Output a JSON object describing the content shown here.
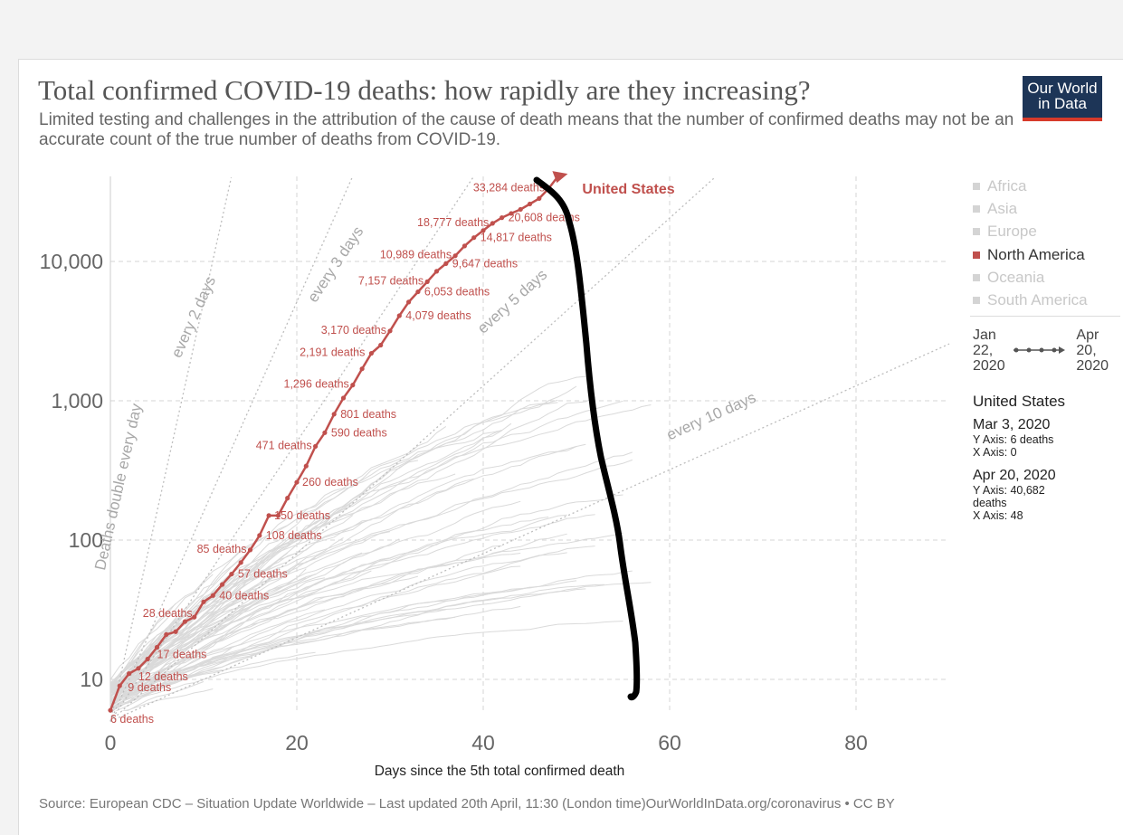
{
  "header": {
    "title": "Total confirmed COVID-19 deaths: how rapidly are they increasing?",
    "subtitle": "Limited testing and challenges in the attribution of the cause of death means that the number of confirmed deaths may not be an accurate count of the true number of deaths from COVID-19.",
    "logo_line1": "Our World",
    "logo_line2": "in Data"
  },
  "legend": {
    "items": [
      {
        "label": "Africa",
        "active": false
      },
      {
        "label": "Asia",
        "active": false
      },
      {
        "label": "Europe",
        "active": false
      },
      {
        "label": "North America",
        "active": true
      },
      {
        "label": "Oceania",
        "active": false
      },
      {
        "label": "South America",
        "active": false
      }
    ]
  },
  "timeline": {
    "start": "Jan\n22,\n2020",
    "end": "Apr\n20,\n2020"
  },
  "info": {
    "country": "United States",
    "p1_date": "Mar 3, 2020",
    "p1_y": "Y Axis: 6 deaths",
    "p1_x": "X Axis: 0",
    "p2_date": "Apr 20, 2020",
    "p2_y": "Y Axis: 40,682\ndeaths",
    "p2_x": "X Axis: 48"
  },
  "footer": {
    "source": "Source: European CDC – Situation Update Worldwide – Last updated 20th April, 11:30 (London time)OurWorldInData.org/coronavirus • CC BY"
  },
  "colors": {
    "highlight": "#c0504d",
    "background_lines": "#dddddd",
    "guide_lines": "#bbbbbb",
    "annotation_ink": "#000000"
  },
  "chart_data": {
    "type": "line",
    "scale_y": "log",
    "xlabel": "Days since the 5th total confirmed death",
    "ylabel": "",
    "xlim": [
      0,
      90
    ],
    "ylim": [
      5,
      40000
    ],
    "x_ticks": [
      0,
      20,
      40,
      60,
      80
    ],
    "y_ticks": [
      {
        "value": 10,
        "label": "10"
      },
      {
        "value": 100,
        "label": "100"
      },
      {
        "value": 1000,
        "label": "1,000"
      },
      {
        "value": 10000,
        "label": "10,000"
      }
    ],
    "series_label": "United States",
    "series": [
      {
        "name": "United States",
        "x": [
          0,
          1,
          2,
          3,
          4,
          5,
          6,
          7,
          8,
          9,
          10,
          11,
          12,
          13,
          14,
          15,
          16,
          17,
          18,
          19,
          20,
          21,
          22,
          23,
          24,
          25,
          26,
          27,
          28,
          29,
          30,
          31,
          32,
          33,
          34,
          35,
          36,
          37,
          38,
          39,
          40,
          41,
          42,
          43,
          44,
          45,
          46,
          47,
          48
        ],
        "y": [
          6,
          9,
          11,
          12,
          14,
          17,
          21,
          22,
          26,
          28,
          36,
          40,
          48,
          57,
          69,
          85,
          108,
          150,
          150,
          200,
          260,
          340,
          471,
          590,
          801,
          1046,
          1296,
          1695,
          2191,
          2509,
          3170,
          4079,
          5113,
          6053,
          7157,
          8501,
          9647,
          10989,
          12911,
          14817,
          16673,
          18777,
          20608,
          22108,
          23640,
          25856,
          28326,
          33284,
          40682
        ]
      }
    ],
    "labeled_points": [
      {
        "label": "6 deaths",
        "x": 0,
        "y": 6
      },
      {
        "label": "9 deaths",
        "x": 1,
        "y": 9
      },
      {
        "label": "12 deaths",
        "x": 3,
        "y": 12
      },
      {
        "label": "17 deaths",
        "x": 5,
        "y": 17
      },
      {
        "label": "28 deaths",
        "x": 9,
        "y": 28
      },
      {
        "label": "40 deaths",
        "x": 11,
        "y": 40
      },
      {
        "label": "57 deaths",
        "x": 13,
        "y": 57
      },
      {
        "label": "85 deaths",
        "x": 15,
        "y": 85
      },
      {
        "label": "108 deaths",
        "x": 16,
        "y": 108
      },
      {
        "label": "150 deaths",
        "x": 17,
        "y": 150
      },
      {
        "label": "260 deaths",
        "x": 20,
        "y": 260
      },
      {
        "label": "471 deaths",
        "x": 22,
        "y": 471
      },
      {
        "label": "590 deaths",
        "x": 23,
        "y": 590
      },
      {
        "label": "801 deaths",
        "x": 24,
        "y": 801
      },
      {
        "label": "1,296 deaths",
        "x": 26,
        "y": 1296
      },
      {
        "label": "2,191 deaths",
        "x": 28,
        "y": 2191
      },
      {
        "label": "3,170 deaths",
        "x": 30,
        "y": 3170
      },
      {
        "label": "4,079 deaths",
        "x": 31,
        "y": 4079
      },
      {
        "label": "6,053 deaths",
        "x": 33,
        "y": 6053
      },
      {
        "label": "7,157 deaths",
        "x": 34,
        "y": 7157
      },
      {
        "label": "9,647 deaths",
        "x": 36,
        "y": 9647
      },
      {
        "label": "10,989 deaths",
        "x": 37,
        "y": 10989
      },
      {
        "label": "14,817 deaths",
        "x": 39,
        "y": 14817
      },
      {
        "label": "18,777 deaths",
        "x": 41,
        "y": 18777
      },
      {
        "label": "20,608 deaths",
        "x": 42,
        "y": 20608
      },
      {
        "label": "33,284 deaths",
        "x": 47,
        "y": 33284
      }
    ],
    "doubling_guides": [
      {
        "label": "Deaths double every day",
        "days": 1
      },
      {
        "label": "every 2 days",
        "days": 2
      },
      {
        "label": "every 3 days",
        "days": 3
      },
      {
        "label": "every 5 days",
        "days": 5
      },
      {
        "label": "every 10 days",
        "days": 10
      }
    ]
  }
}
